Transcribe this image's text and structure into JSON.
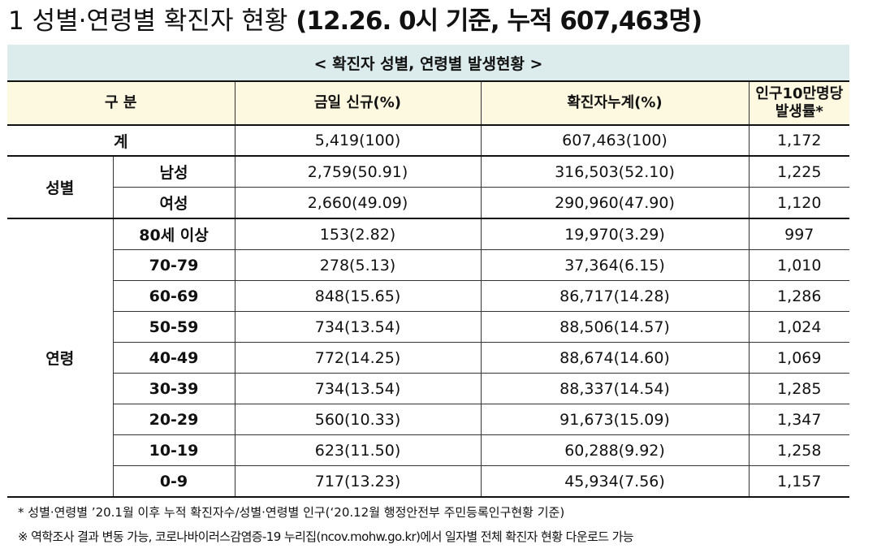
{
  "title": {
    "number": "1",
    "main": "성별·연령별 확진자 현황",
    "paren": "(12.26. 0시 기준, 누적 607,463명)"
  },
  "table": {
    "caption": "< 확진자 성별, 연령별 발생현황 >",
    "headers": {
      "category": "구 분",
      "new_today": "금일 신규(%)",
      "cumulative": "확진자누계(%)",
      "rate_line1": "인구10만명당",
      "rate_line2": "발생률*"
    },
    "total": {
      "label": "계",
      "new_today": "5,419(100)",
      "cumulative": "607,463(100)",
      "rate": "1,172"
    },
    "sex": {
      "label": "성별",
      "rows": [
        {
          "label": "남성",
          "new_today": "2,759(50.91)",
          "cumulative": "316,503(52.10)",
          "rate": "1,225"
        },
        {
          "label": "여성",
          "new_today": "2,660(49.09)",
          "cumulative": "290,960(47.90)",
          "rate": "1,120"
        }
      ]
    },
    "age": {
      "label": "연령",
      "rows": [
        {
          "label": "80세 이상",
          "new_today": "153(2.82)",
          "cumulative": "19,970(3.29)",
          "rate": "997"
        },
        {
          "label": "70-79",
          "new_today": "278(5.13)",
          "cumulative": "37,364(6.15)",
          "rate": "1,010"
        },
        {
          "label": "60-69",
          "new_today": "848(15.65)",
          "cumulative": "86,717(14.28)",
          "rate": "1,286"
        },
        {
          "label": "50-59",
          "new_today": "734(13.54)",
          "cumulative": "88,506(14.57)",
          "rate": "1,024"
        },
        {
          "label": "40-49",
          "new_today": "772(14.25)",
          "cumulative": "88,674(14.60)",
          "rate": "1,069"
        },
        {
          "label": "30-39",
          "new_today": "734(13.54)",
          "cumulative": "88,337(14.54)",
          "rate": "1,285"
        },
        {
          "label": "20-29",
          "new_today": "560(10.33)",
          "cumulative": "91,673(15.09)",
          "rate": "1,347"
        },
        {
          "label": "10-19",
          "new_today": "623(11.50)",
          "cumulative": "60,288(9.92)",
          "rate": "1,258"
        },
        {
          "label": "0-9",
          "new_today": "717(13.23)",
          "cumulative": "45,934(7.56)",
          "rate": "1,157"
        }
      ]
    }
  },
  "footnotes": [
    "* 성별·연령별 ’20.1월 이후 누적 확진자수/성별·연령별 인구(‘20.12월 행정안전부 주민등록인구현황 기준)",
    "※ 역학조사 결과 변동 가능, 코로나바이러스감염증-19 누리집(ncov.mohw.go.kr)에서 일자별 전체 확진자 현황 다운로드 가능"
  ]
}
